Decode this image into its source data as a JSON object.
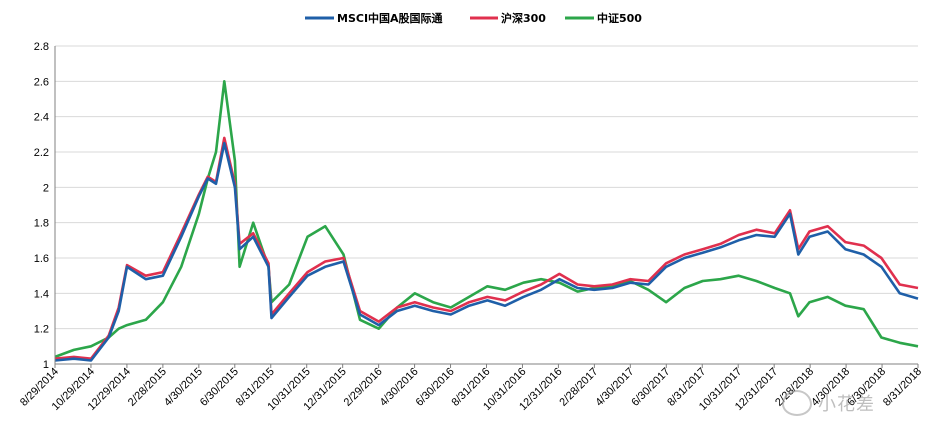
{
  "chart_data": {
    "type": "line",
    "title": "",
    "xlabel": "",
    "ylabel": "",
    "ylim": [
      1,
      2.8
    ],
    "y_ticks": [
      1,
      1.2,
      1.4,
      1.6,
      1.8,
      2,
      2.2,
      2.4,
      2.6,
      2.8
    ],
    "grid": "horizontal",
    "legend_position": "top-center",
    "x_tick_labels": [
      "8/29/2014",
      "10/29/2014",
      "12/29/2014",
      "2/28/2015",
      "4/30/2015",
      "6/30/2015",
      "8/31/2015",
      "10/31/2015",
      "12/31/2015",
      "2/29/2016",
      "4/30/2016",
      "6/30/2016",
      "8/31/2016",
      "10/31/2016",
      "12/31/2016",
      "2/28/2017",
      "4/30/2017",
      "6/30/2017",
      "8/31/2017",
      "10/31/2017",
      "12/31/2017",
      "2/28/2018",
      "4/30/2018",
      "6/30/2018",
      "8/31/2018"
    ],
    "x": [
      "2014-08-29",
      "2014-09-30",
      "2014-10-29",
      "2014-11-28",
      "2014-12-15",
      "2014-12-29",
      "2015-01-30",
      "2015-02-28",
      "2015-03-31",
      "2015-04-30",
      "2015-05-15",
      "2015-05-29",
      "2015-06-12",
      "2015-06-30",
      "2015-07-08",
      "2015-07-31",
      "2015-08-26",
      "2015-08-31",
      "2015-09-30",
      "2015-10-31",
      "2015-11-30",
      "2015-12-31",
      "2016-01-28",
      "2016-02-29",
      "2016-03-31",
      "2016-04-30",
      "2016-05-31",
      "2016-06-30",
      "2016-07-31",
      "2016-08-31",
      "2016-09-30",
      "2016-10-31",
      "2016-11-30",
      "2016-12-31",
      "2017-01-31",
      "2017-02-28",
      "2017-03-31",
      "2017-04-30",
      "2017-05-31",
      "2017-06-30",
      "2017-07-31",
      "2017-08-31",
      "2017-09-30",
      "2017-10-31",
      "2017-11-30",
      "2017-12-31",
      "2018-01-26",
      "2018-02-09",
      "2018-02-28",
      "2018-03-31",
      "2018-04-30",
      "2018-05-31",
      "2018-06-30",
      "2018-07-31",
      "2018-08-31"
    ],
    "series": [
      {
        "name": "MSCI中国A股国际通",
        "color": "#1f5fa8",
        "values": [
          1.02,
          1.03,
          1.02,
          1.15,
          1.3,
          1.55,
          1.48,
          1.5,
          1.72,
          1.95,
          2.05,
          2.02,
          2.25,
          2.0,
          1.65,
          1.72,
          1.55,
          1.26,
          1.38,
          1.5,
          1.55,
          1.58,
          1.28,
          1.22,
          1.3,
          1.33,
          1.3,
          1.28,
          1.33,
          1.36,
          1.33,
          1.38,
          1.42,
          1.48,
          1.43,
          1.42,
          1.43,
          1.46,
          1.45,
          1.55,
          1.6,
          1.63,
          1.66,
          1.7,
          1.73,
          1.72,
          1.85,
          1.62,
          1.72,
          1.75,
          1.65,
          1.62,
          1.55,
          1.4,
          1.37
        ]
      },
      {
        "name": "沪深300",
        "color": "#e0304e",
        "values": [
          1.03,
          1.04,
          1.03,
          1.16,
          1.32,
          1.56,
          1.5,
          1.52,
          1.74,
          1.96,
          2.06,
          2.03,
          2.28,
          2.02,
          1.68,
          1.74,
          1.57,
          1.28,
          1.4,
          1.52,
          1.58,
          1.6,
          1.3,
          1.24,
          1.32,
          1.35,
          1.32,
          1.3,
          1.35,
          1.38,
          1.36,
          1.41,
          1.45,
          1.51,
          1.45,
          1.44,
          1.45,
          1.48,
          1.47,
          1.57,
          1.62,
          1.65,
          1.68,
          1.73,
          1.76,
          1.74,
          1.87,
          1.65,
          1.75,
          1.78,
          1.69,
          1.67,
          1.6,
          1.45,
          1.43
        ]
      },
      {
        "name": "中证500",
        "color": "#2ca64a",
        "values": [
          1.04,
          1.08,
          1.1,
          1.15,
          1.2,
          1.22,
          1.25,
          1.35,
          1.55,
          1.85,
          2.05,
          2.2,
          2.6,
          2.15,
          1.55,
          1.8,
          1.55,
          1.35,
          1.45,
          1.72,
          1.78,
          1.62,
          1.25,
          1.2,
          1.32,
          1.4,
          1.35,
          1.32,
          1.38,
          1.44,
          1.42,
          1.46,
          1.48,
          1.46,
          1.41,
          1.43,
          1.44,
          1.47,
          1.42,
          1.35,
          1.43,
          1.47,
          1.48,
          1.5,
          1.47,
          1.43,
          1.4,
          1.27,
          1.35,
          1.38,
          1.33,
          1.31,
          1.15,
          1.12,
          1.1
        ]
      }
    ]
  },
  "watermark": {
    "text": "小花差"
  }
}
